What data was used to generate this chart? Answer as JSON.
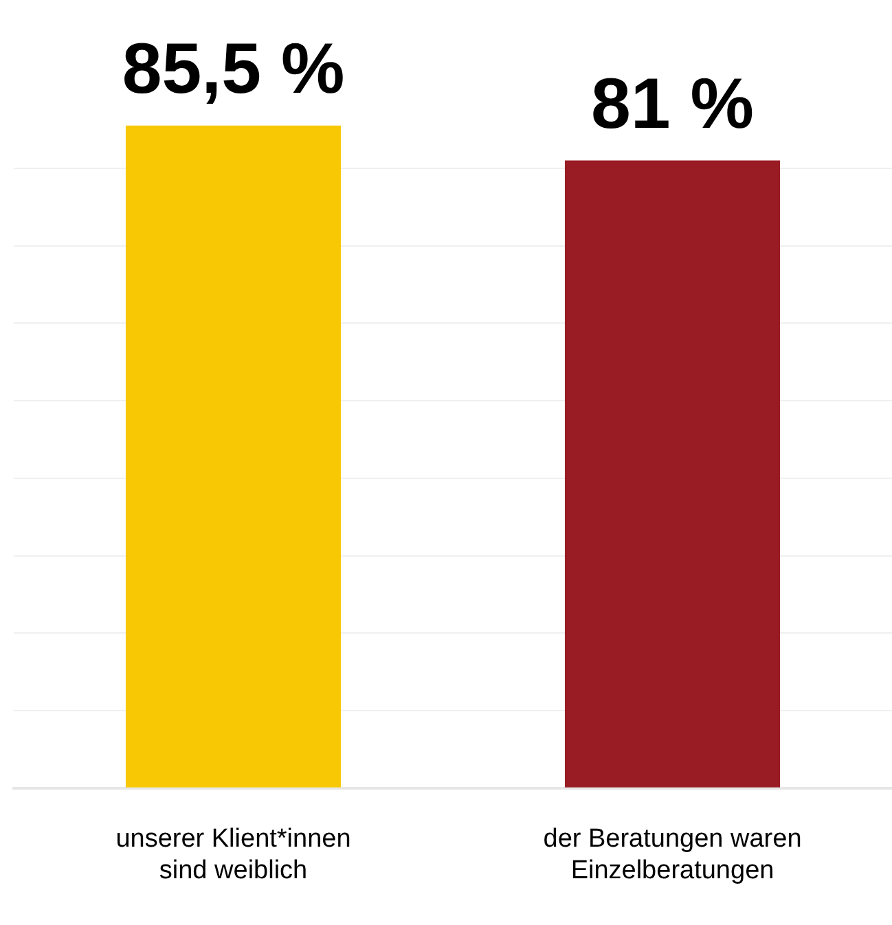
{
  "chart_data": {
    "type": "bar",
    "categories": [
      "unserer Klient*innen sind weiblich",
      "der Beratungen waren Einzelberatungen"
    ],
    "values": [
      85.5,
      81
    ],
    "colors": [
      "#f8c804",
      "#991c24"
    ],
    "value_labels": [
      "85,5 %",
      "81 %"
    ],
    "yticks": [
      {
        "value": 0,
        "label": null
      },
      {
        "value": 10,
        "label": null
      },
      {
        "value": 20,
        "label": null
      },
      {
        "value": 30,
        "label": null
      },
      {
        "value": 40,
        "label": null
      },
      {
        "value": 50,
        "label": null
      },
      {
        "value": 60,
        "label": null
      },
      {
        "value": 70,
        "label": null
      },
      {
        "value": 80,
        "label": null
      }
    ],
    "grid": "y",
    "legend": false,
    "tick_labels": "x"
  }
}
